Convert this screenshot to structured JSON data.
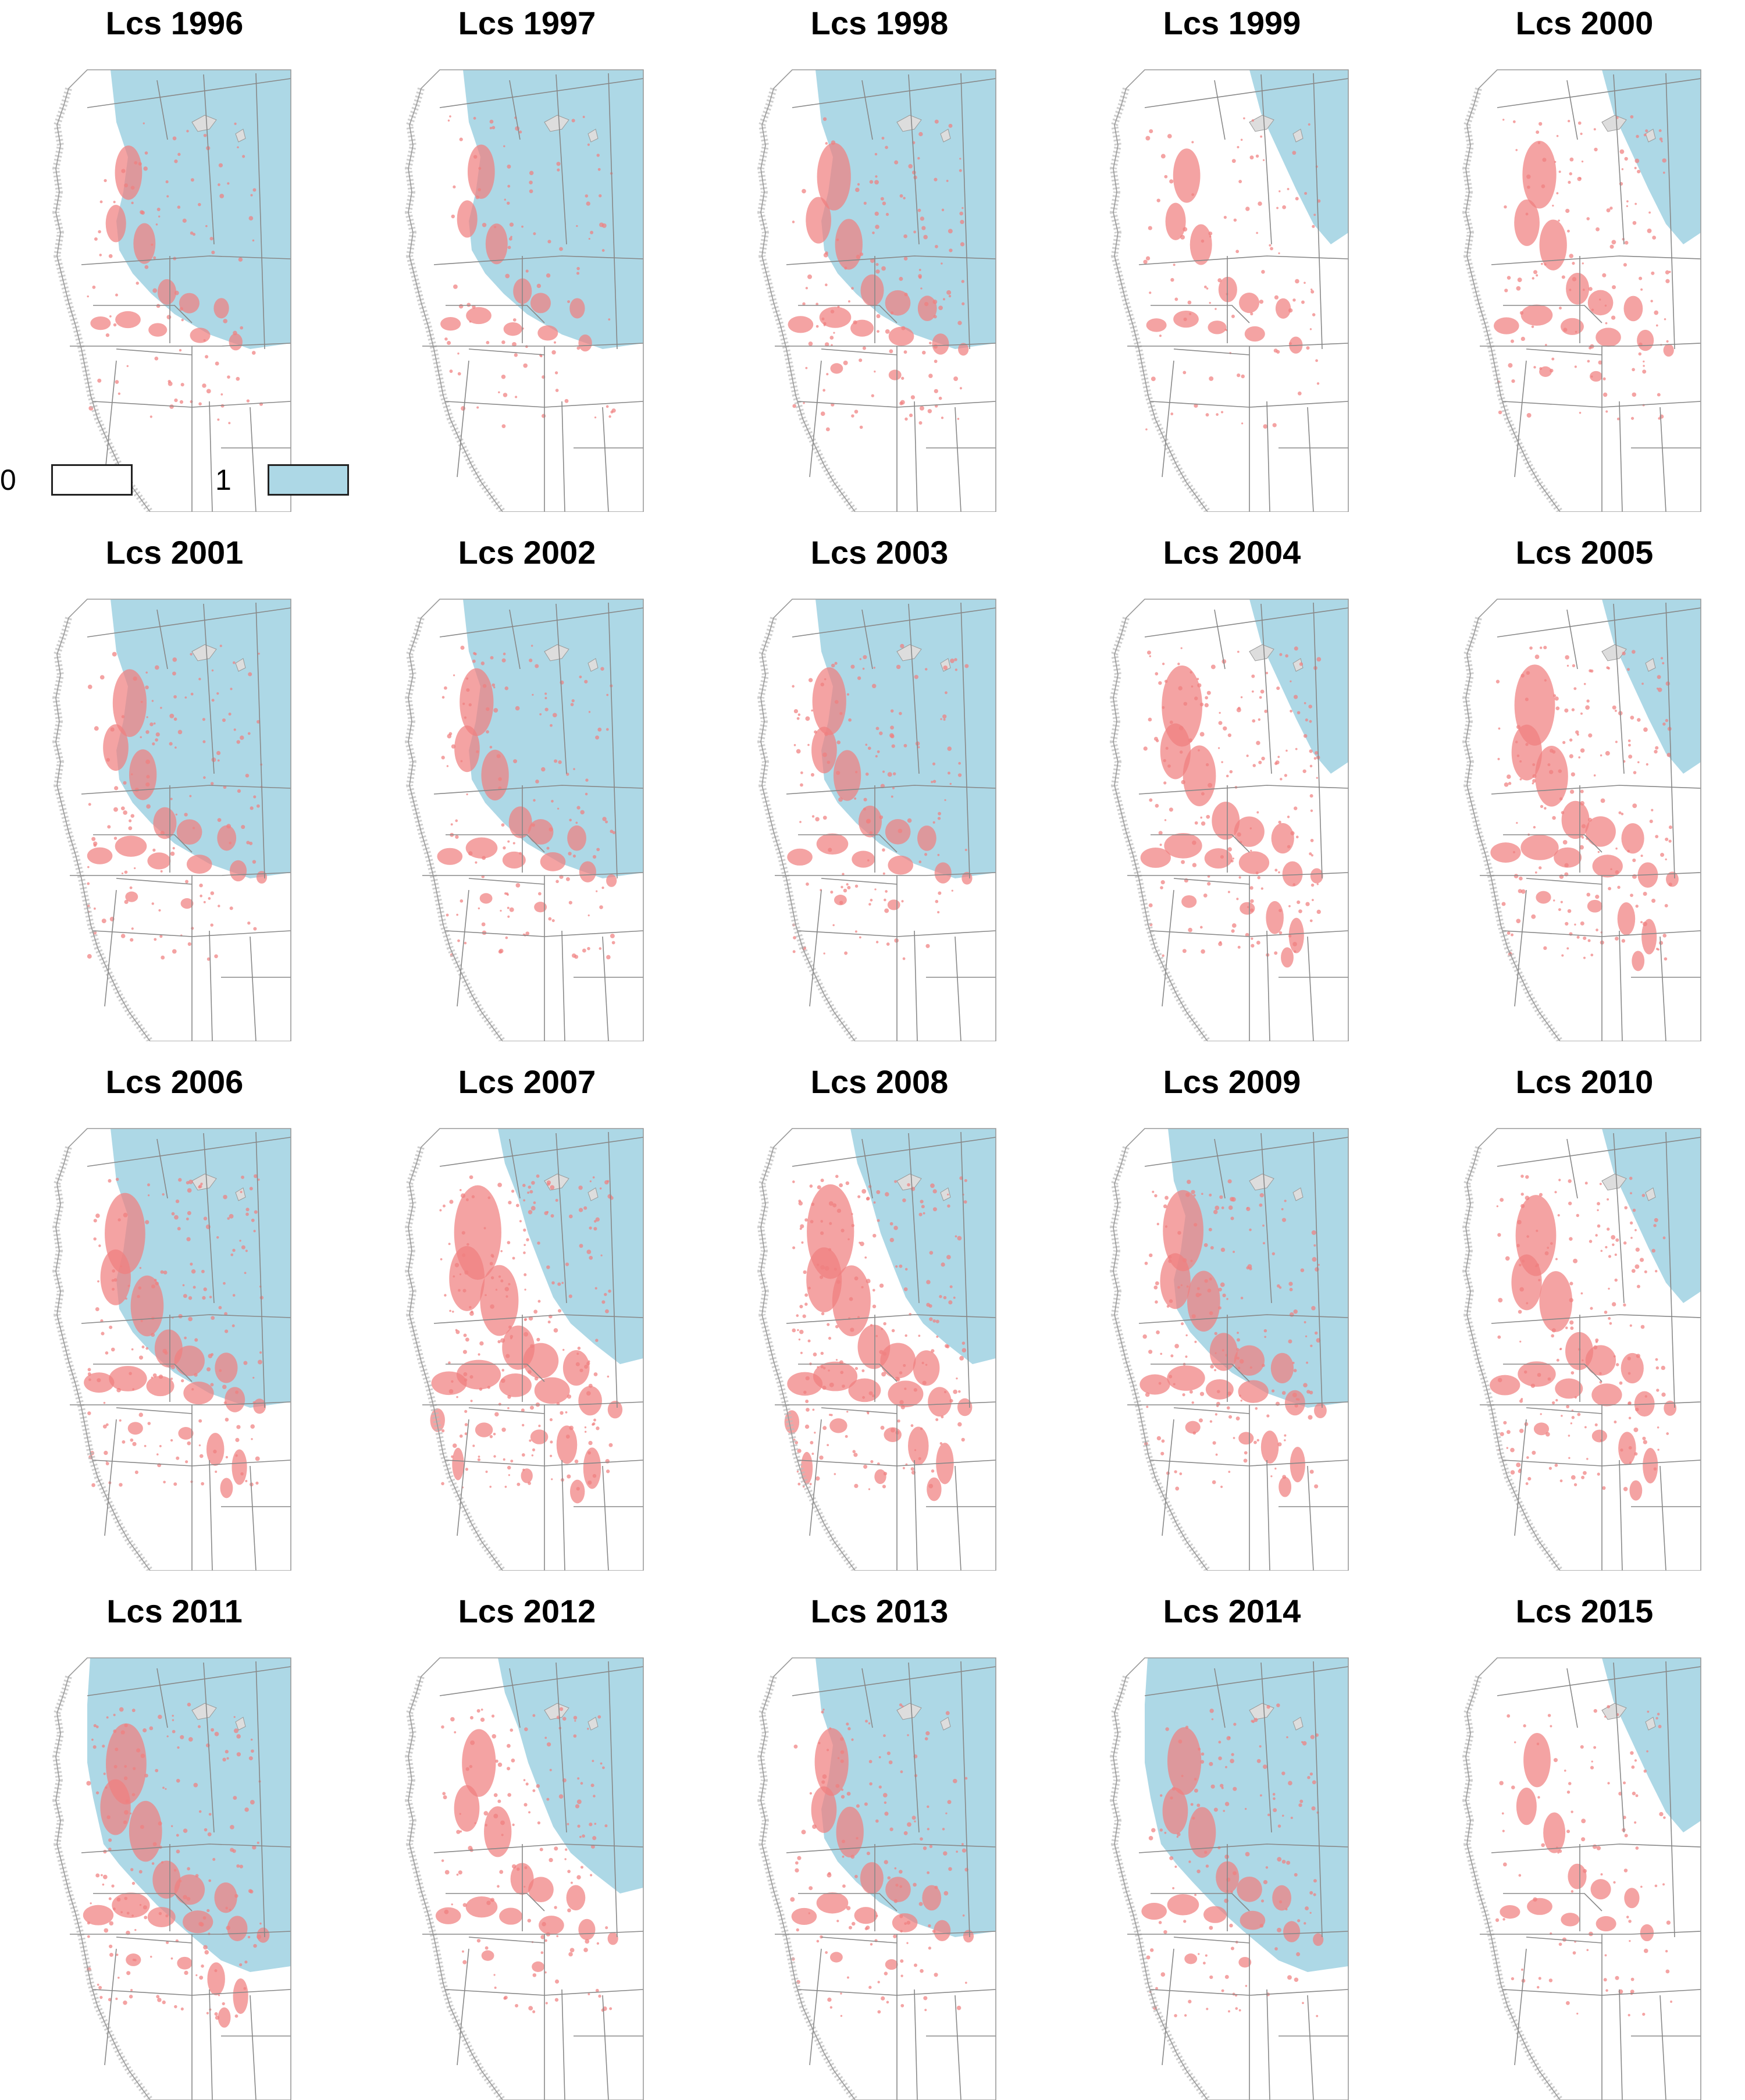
{
  "figure": {
    "panels": [
      {
        "title": "Lcs 1996",
        "year": 1996,
        "blue_extent": "high",
        "pink_intensity": 1
      },
      {
        "title": "Lcs 1997",
        "year": 1997,
        "blue_extent": "high",
        "pink_intensity": 1
      },
      {
        "title": "Lcs 1998",
        "year": 1998,
        "blue_extent": "high",
        "pink_intensity": 2
      },
      {
        "title": "Lcs 1999",
        "year": 1999,
        "blue_extent": "low",
        "pink_intensity": 1
      },
      {
        "title": "Lcs 2000",
        "year": 2000,
        "blue_extent": "low",
        "pink_intensity": 2
      },
      {
        "title": "Lcs 2001",
        "year": 2001,
        "blue_extent": "high",
        "pink_intensity": 2
      },
      {
        "title": "Lcs 2002",
        "year": 2002,
        "blue_extent": "high",
        "pink_intensity": 2
      },
      {
        "title": "Lcs 2003",
        "year": 2003,
        "blue_extent": "high",
        "pink_intensity": 2
      },
      {
        "title": "Lcs 2004",
        "year": 2004,
        "blue_extent": "low",
        "pink_intensity": 3
      },
      {
        "title": "Lcs 2005",
        "year": 2005,
        "blue_extent": "low",
        "pink_intensity": 3
      },
      {
        "title": "Lcs 2006",
        "year": 2006,
        "blue_extent": "high",
        "pink_intensity": 3
      },
      {
        "title": "Lcs 2007",
        "year": 2007,
        "blue_extent": "mid",
        "pink_intensity": 4
      },
      {
        "title": "Lcs 2008",
        "year": 2008,
        "blue_extent": "mid",
        "pink_intensity": 4
      },
      {
        "title": "Lcs 2009",
        "year": 2009,
        "blue_extent": "high",
        "pink_intensity": 3
      },
      {
        "title": "Lcs 2010",
        "year": 2010,
        "blue_extent": "low",
        "pink_intensity": 3
      },
      {
        "title": "Lcs 2011",
        "year": 2011,
        "blue_extent": "full",
        "pink_intensity": 3
      },
      {
        "title": "Lcs 2012",
        "year": 2012,
        "blue_extent": "mid",
        "pink_intensity": 2
      },
      {
        "title": "Lcs 2013",
        "year": 2013,
        "blue_extent": "high",
        "pink_intensity": 2
      },
      {
        "title": "Lcs 2014",
        "year": 2014,
        "blue_extent": "full",
        "pink_intensity": 2
      },
      {
        "title": "Lcs 2015",
        "year": 2015,
        "blue_extent": "low",
        "pink_intensity": 1
      }
    ]
  },
  "legend": {
    "items": [
      {
        "label": "0",
        "color": "#ffffff"
      },
      {
        "label": "1",
        "color": "#add8e6"
      }
    ]
  },
  "colors": {
    "value_1": "#add8e6",
    "value_0": "#ffffff",
    "overlay": "#f08080",
    "borders": "#888888",
    "coast_relief": "#bbbbbb"
  }
}
